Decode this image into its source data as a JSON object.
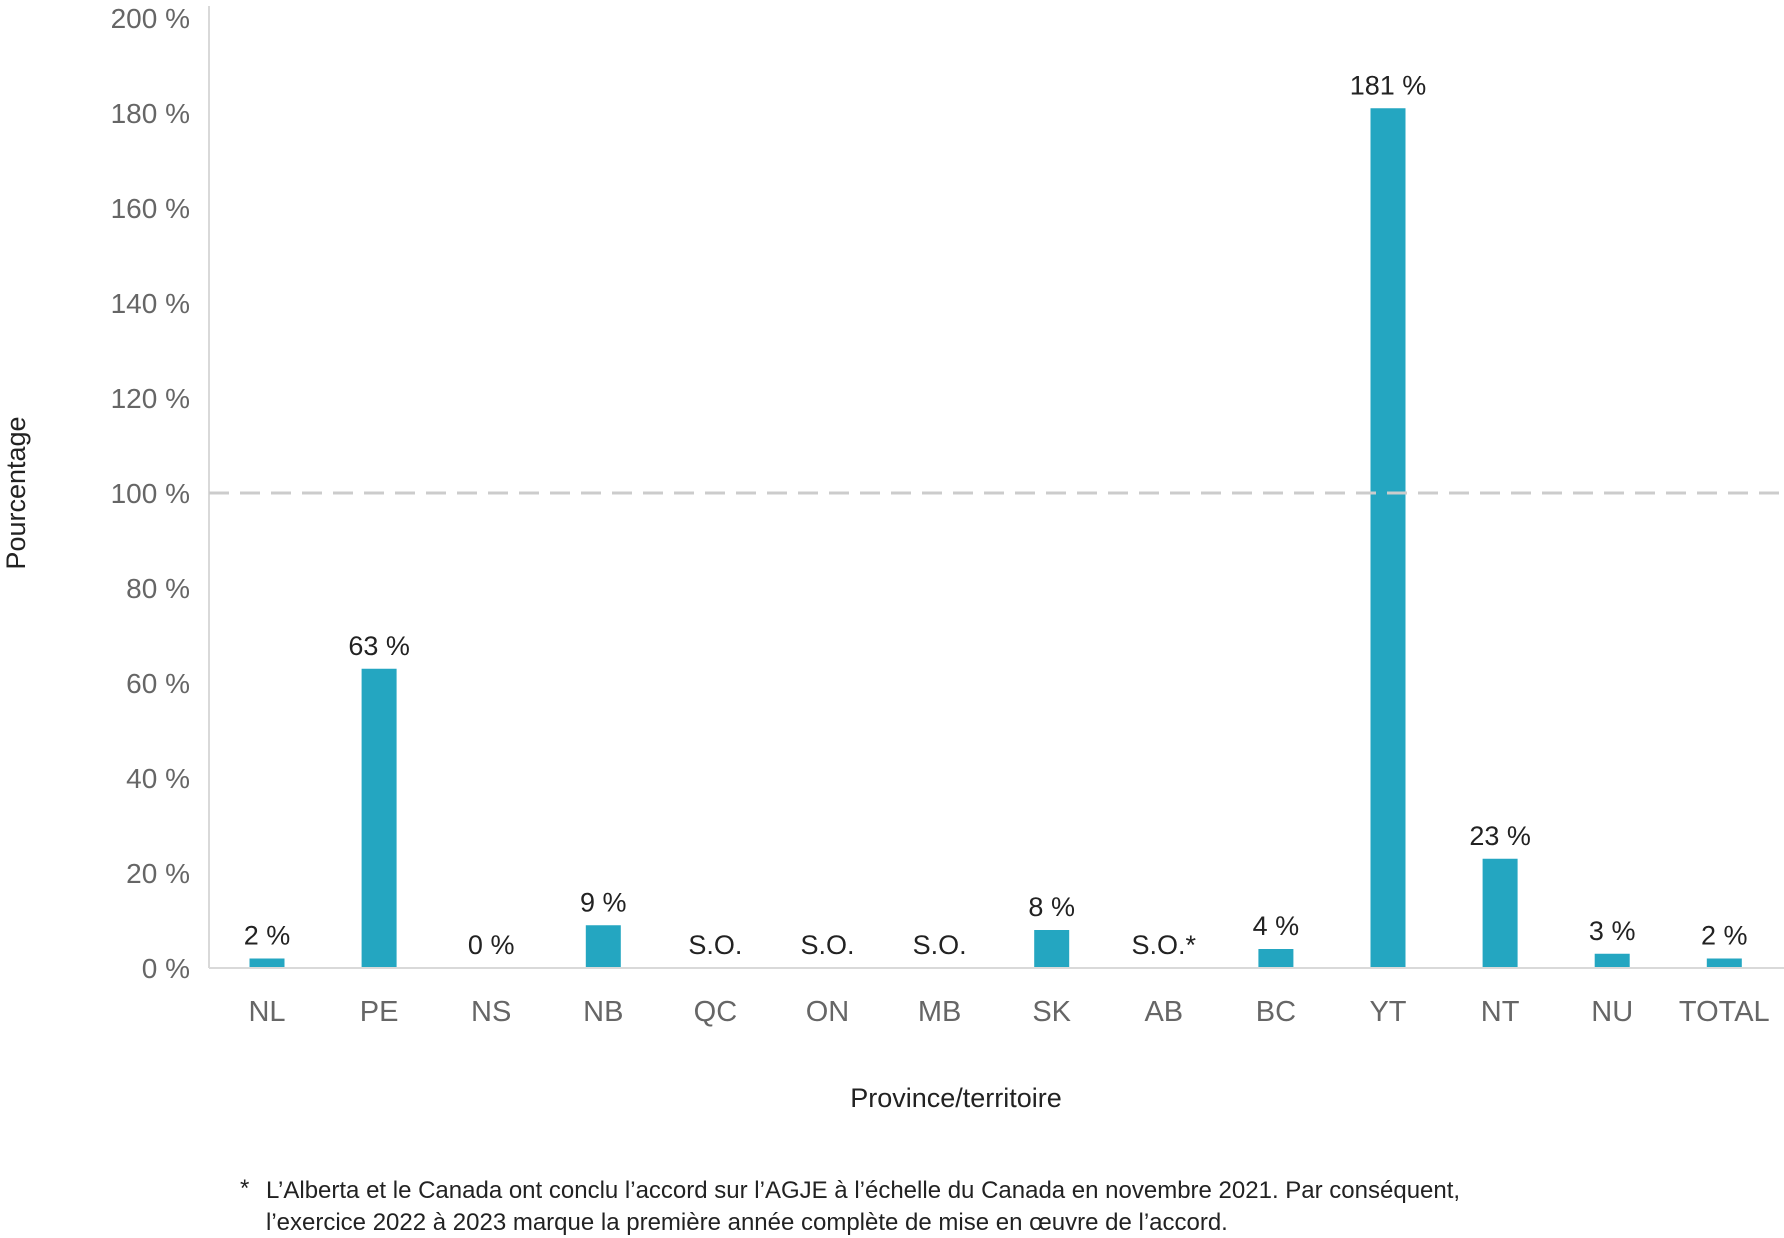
{
  "chart_data": {
    "type": "bar",
    "categories": [
      "NL",
      "PE",
      "NS",
      "NB",
      "QC",
      "ON",
      "MB",
      "SK",
      "AB",
      "BC",
      "YT",
      "NT",
      "NU",
      "TOTAL"
    ],
    "values": [
      2,
      63,
      0,
      9,
      null,
      null,
      null,
      8,
      null,
      4,
      181,
      23,
      3,
      2
    ],
    "data_labels": [
      "2 %",
      "63 %",
      "0 %",
      "9 %",
      "S.O.",
      "S.O.",
      "S.O.",
      "8 %",
      "S.O.*",
      "4 %",
      "181 %",
      "23 %",
      "3 %",
      "2 %"
    ],
    "xlabel": "Province/territoire",
    "ylabel": "Pourcentage",
    "ylim": [
      0,
      200
    ],
    "yticks": [
      0,
      20,
      40,
      60,
      80,
      100,
      120,
      140,
      160,
      180,
      200
    ],
    "ytick_labels": [
      "0 %",
      "20 %",
      "40 %",
      "60 %",
      "80 %",
      "100 %",
      "120 %",
      "140 %",
      "160 %",
      "180 %",
      "200 %"
    ],
    "reference_line": 100,
    "grid": false,
    "bar_color": "#24A6C1",
    "reference_line_color": "#CCCCCC"
  },
  "footnote": {
    "marker": "*",
    "line1": "L’Alberta et le Canada ont conclu l’accord sur l’AGJE à l’échelle du Canada en novembre 2021. Par conséquent,",
    "line2": "l’exercice 2022 à 2023 marque la première année complète de mise en œuvre de l’accord."
  }
}
